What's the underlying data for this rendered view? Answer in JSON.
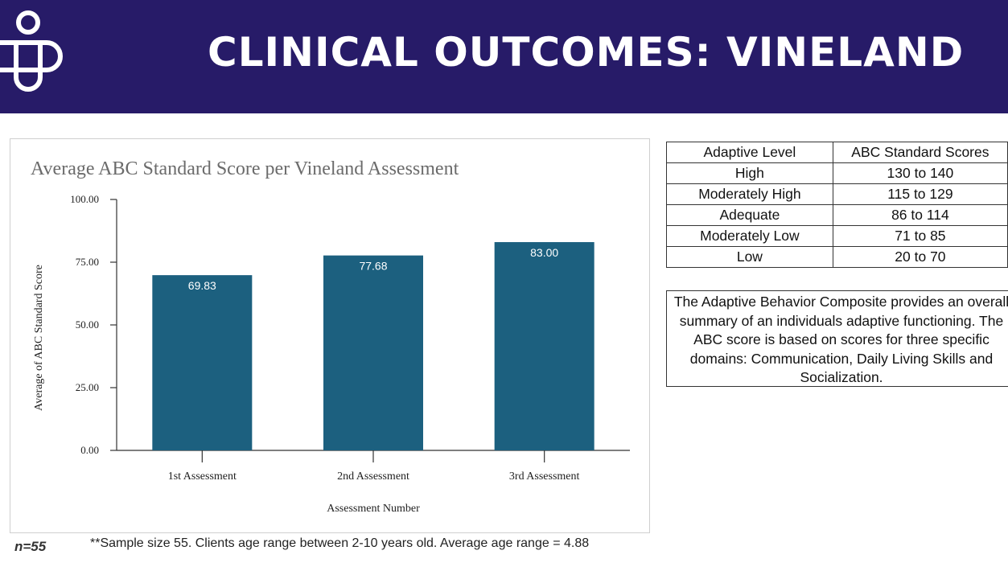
{
  "header": {
    "title": "CLINICAL OUTCOMES: VINELAND",
    "background_color": "#271b68",
    "logo_icon": "brand-logo-icon"
  },
  "chart_data": {
    "type": "bar",
    "title": "Average ABC Standard Score per Vineland Assessment",
    "xlabel": "Assessment Number",
    "ylabel": "Average of  ABC Standard Score",
    "categories": [
      "1st Assessment",
      "2nd Assessment",
      "3rd Assessment"
    ],
    "values": [
      69.83,
      77.68,
      83.0
    ],
    "value_labels": [
      "69.83",
      "77.68",
      "83.00"
    ],
    "ylim": [
      0,
      100
    ],
    "yticks": [
      "0.00",
      "25.00",
      "50.00",
      "75.00",
      "100.00"
    ],
    "bar_color": "#1c607f",
    "grid": false,
    "legend": "none"
  },
  "reference_table": {
    "headers": [
      "Adaptive Level",
      "ABC Standard Scores"
    ],
    "rows": [
      [
        "High",
        "130 to 140"
      ],
      [
        "Moderately High",
        "115 to 129"
      ],
      [
        "Adequate",
        "86 to 114"
      ],
      [
        "Moderately Low",
        "71 to 85"
      ],
      [
        "Low",
        "20 to 70"
      ]
    ]
  },
  "description": "The Adaptive Behavior Composite provides an overall summary of an individuals adaptive functioning. The ABC score is based on scores for three specific domains: Communication, Daily Living Skills and Socialization.",
  "footer": {
    "sample_size": "n=55",
    "note": "**Sample size 55. Clients age range between 2-10 years old. Average age range = 4.88"
  }
}
